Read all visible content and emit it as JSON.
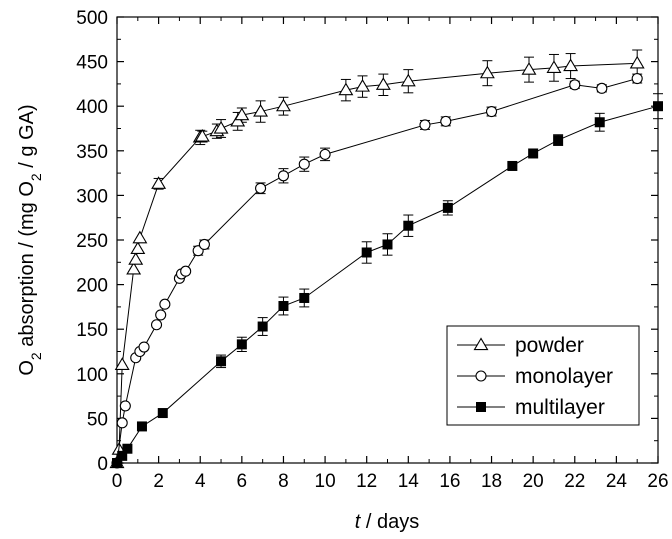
{
  "chart_data": {
    "type": "scatter",
    "title": "",
    "xlabel_italic": "t",
    "xlabel_rest": " / days",
    "ylabel_parts": [
      "O",
      "2",
      " absorption / (mg O",
      "2",
      " / g GA)"
    ],
    "xlim": [
      0,
      26
    ],
    "ylim": [
      0,
      500
    ],
    "xticks": [
      0,
      2,
      4,
      6,
      8,
      10,
      12,
      14,
      16,
      18,
      20,
      22,
      24,
      26
    ],
    "yticks": [
      0,
      50,
      100,
      150,
      200,
      250,
      300,
      350,
      400,
      450,
      500
    ],
    "grid": false,
    "legend_position": "lower-right",
    "series": [
      {
        "name": "powder",
        "marker": "triangle-open",
        "x": [
          0,
          0.1,
          0.25,
          0.8,
          0.9,
          1.0,
          1.1,
          2.0,
          4.0,
          4.1,
          4.8,
          5.0,
          5.8,
          6.0,
          6.9,
          8.0,
          11.0,
          11.8,
          12.8,
          14.0,
          17.8,
          19.8,
          21.0,
          21.8,
          25.0
        ],
        "y": [
          0,
          15,
          110,
          217,
          228,
          240,
          252,
          313,
          365,
          366,
          372,
          375,
          383,
          390,
          394,
          400,
          418,
          422,
          424,
          428,
          437,
          441,
          443,
          445,
          448
        ],
        "err": [
          0,
          0,
          0,
          0,
          0,
          0,
          0,
          6,
          8,
          6,
          8,
          10,
          10,
          8,
          12,
          10,
          12,
          12,
          12,
          13,
          14,
          14,
          15,
          14,
          15
        ]
      },
      {
        "name": "monolayer",
        "marker": "circle-open",
        "x": [
          0,
          0.25,
          0.4,
          0.9,
          1.1,
          1.3,
          1.9,
          2.1,
          2.3,
          3.0,
          3.1,
          3.3,
          3.9,
          4.2,
          6.9,
          8.0,
          9.0,
          10.0,
          14.8,
          15.8,
          18.0,
          22.0,
          23.3,
          25.0
        ],
        "y": [
          0,
          45,
          64,
          118,
          125,
          130,
          155,
          166,
          178,
          207,
          212,
          215,
          238,
          245,
          308,
          322,
          335,
          346,
          379,
          383,
          394,
          424,
          420,
          431
        ],
        "err": [
          0,
          0,
          0,
          0,
          0,
          0,
          0,
          0,
          0,
          0,
          0,
          0,
          5,
          5,
          6,
          8,
          8,
          7,
          5,
          5,
          5,
          4,
          4,
          5
        ]
      },
      {
        "name": "multilayer",
        "marker": "square-filled",
        "x": [
          0,
          0.25,
          0.5,
          1.2,
          2.2,
          5.0,
          6.0,
          7.0,
          8.0,
          9.0,
          12.0,
          13.0,
          14.0,
          15.9,
          19.0,
          20.0,
          21.2,
          23.2,
          26.0
        ],
        "y": [
          0,
          8,
          16,
          41,
          56,
          114,
          133,
          153,
          176,
          185,
          236,
          245,
          266,
          286,
          333,
          347,
          362,
          382,
          400
        ],
        "err": [
          0,
          0,
          0,
          0,
          0,
          7,
          8,
          10,
          10,
          10,
          12,
          12,
          12,
          8,
          0,
          0,
          6,
          10,
          14
        ]
      }
    ]
  }
}
